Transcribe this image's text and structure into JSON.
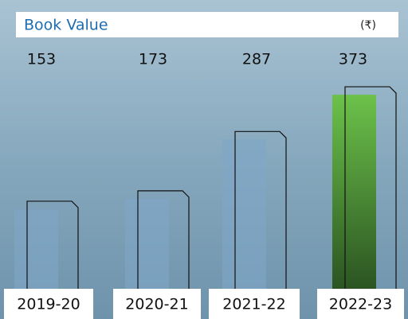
{
  "chart_data": {
    "type": "bar",
    "title": "Book Value",
    "unit": "(₹)",
    "categories": [
      "2019-20",
      "2020-21",
      "2021-22",
      "2022-23"
    ],
    "values": [
      153,
      173,
      287,
      373
    ],
    "colors": [
      "#7ea7c8",
      "#7ea7c8",
      "#7ea7c8",
      "#6cc24a"
    ]
  }
}
